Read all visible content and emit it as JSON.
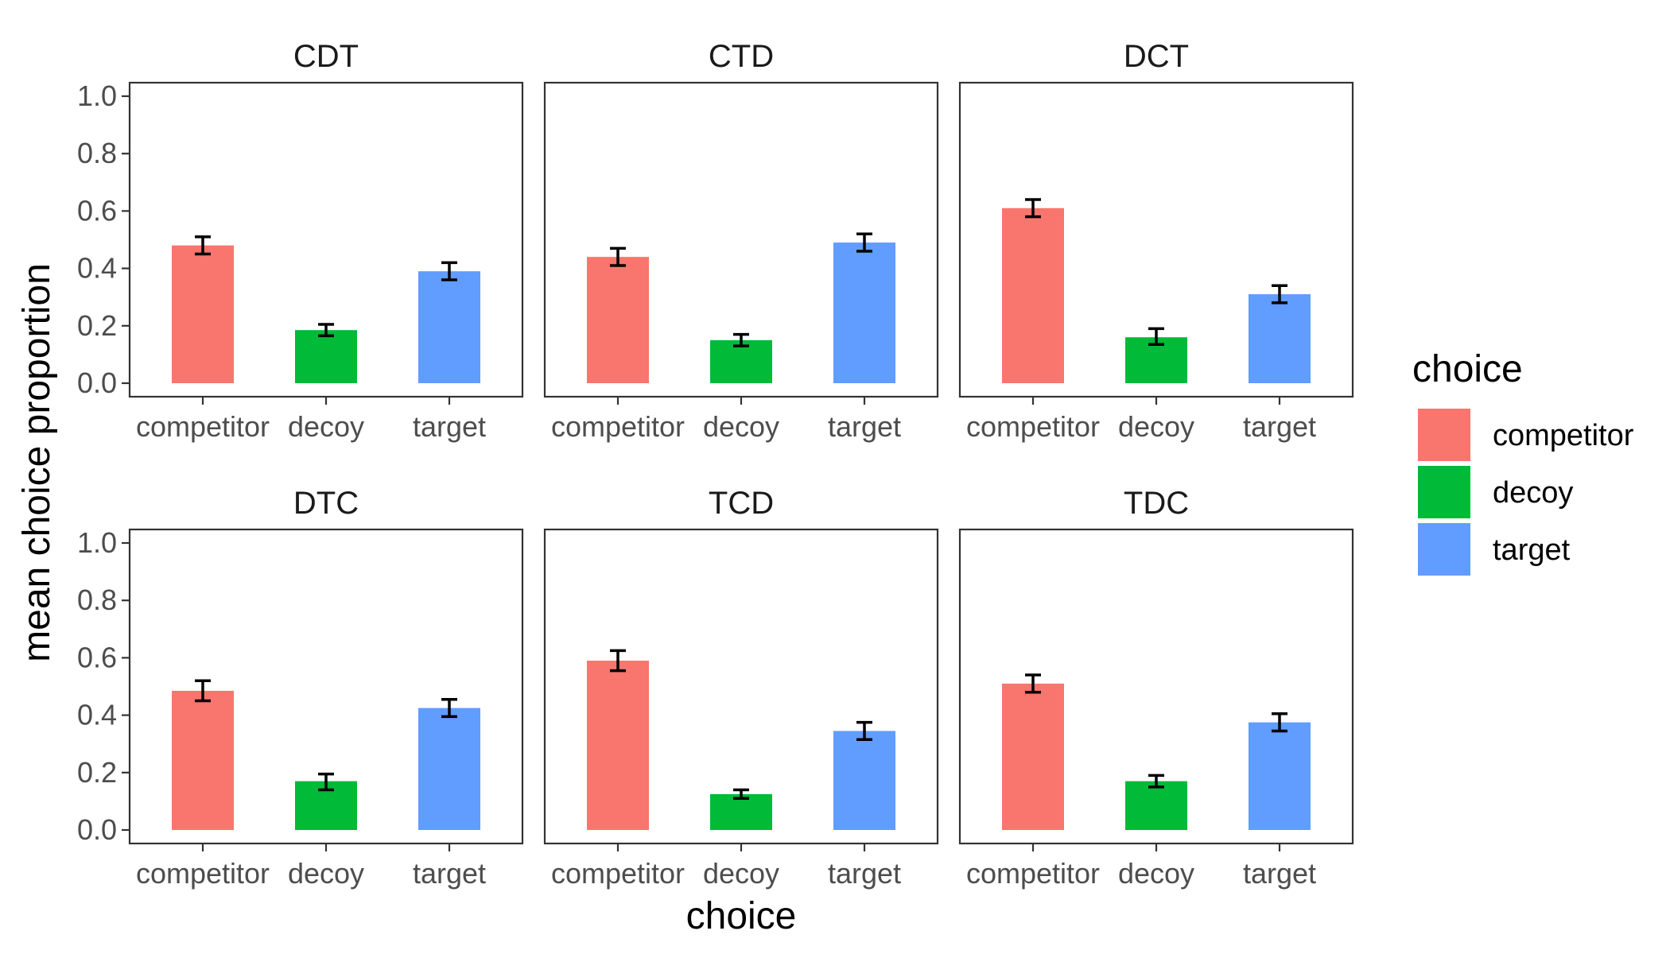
{
  "chart_data": {
    "type": "bar",
    "xlabel": "choice",
    "ylabel": "mean choice proportion",
    "ylim": [
      0,
      1.0
    ],
    "y_ticks": [
      0.0,
      0.2,
      0.4,
      0.6,
      0.8,
      1.0
    ],
    "y_tick_labels": [
      "0.0",
      "0.2",
      "0.4",
      "0.6",
      "0.8",
      "1.0"
    ],
    "categories": [
      "competitor",
      "decoy",
      "target"
    ],
    "colors": {
      "competitor": "#F8766D",
      "decoy": "#00BA38",
      "target": "#619CFF"
    },
    "legend": {
      "title": "choice",
      "position": "right",
      "entries": [
        "competitor",
        "decoy",
        "target"
      ]
    },
    "grid": false,
    "facets": [
      {
        "title": "CDT",
        "values": [
          0.48,
          0.185,
          0.39
        ],
        "errors": [
          [
            0.45,
            0.51
          ],
          [
            0.165,
            0.205
          ],
          [
            0.36,
            0.42
          ]
        ]
      },
      {
        "title": "CTD",
        "values": [
          0.44,
          0.15,
          0.49
        ],
        "errors": [
          [
            0.41,
            0.47
          ],
          [
            0.13,
            0.17
          ],
          [
            0.46,
            0.52
          ]
        ]
      },
      {
        "title": "DCT",
        "values": [
          0.61,
          0.16,
          0.31
        ],
        "errors": [
          [
            0.58,
            0.64
          ],
          [
            0.135,
            0.19
          ],
          [
            0.28,
            0.34
          ]
        ]
      },
      {
        "title": "DTC",
        "values": [
          0.485,
          0.17,
          0.425
        ],
        "errors": [
          [
            0.45,
            0.52
          ],
          [
            0.14,
            0.195
          ],
          [
            0.395,
            0.455
          ]
        ]
      },
      {
        "title": "TCD",
        "values": [
          0.59,
          0.125,
          0.345
        ],
        "errors": [
          [
            0.555,
            0.625
          ],
          [
            0.11,
            0.14
          ],
          [
            0.315,
            0.375
          ]
        ]
      },
      {
        "title": "TDC",
        "values": [
          0.51,
          0.17,
          0.375
        ],
        "errors": [
          [
            0.48,
            0.54
          ],
          [
            0.15,
            0.19
          ],
          [
            0.345,
            0.405
          ]
        ]
      }
    ]
  }
}
